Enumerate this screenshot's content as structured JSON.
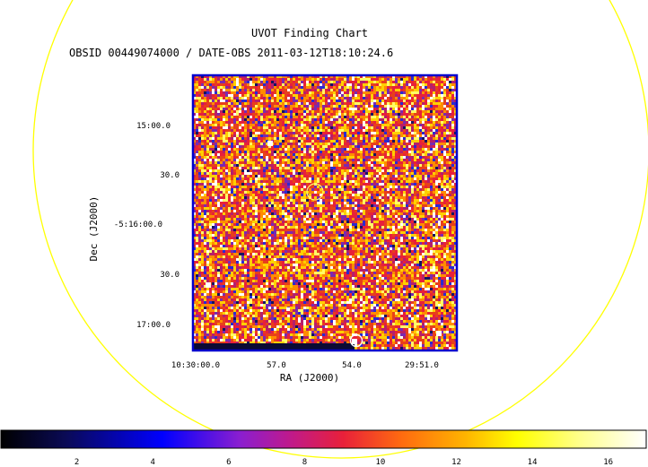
{
  "chart_data": {
    "type": "heatmap",
    "title": "UVOT Finding Chart",
    "subtitle": "OBSID 00449074000 / DATE-OBS 2011-03-12T18:10:24.6",
    "xlabel": "RA (J2000)",
    "ylabel": "Dec (J2000)",
    "ra_ticks": [
      "10:30:00.0",
      "57.0",
      "54.0",
      "29:51.0"
    ],
    "dec_ticks": [
      "15:00.0",
      "30.0",
      "-5:16:00.0",
      "30.0",
      "17:00.0"
    ],
    "colorbar": {
      "ticks": [
        2,
        4,
        6,
        8,
        10,
        12,
        14,
        16
      ],
      "range": [
        0,
        17
      ]
    },
    "colormap": [
      "#000000",
      "#0000ff",
      "#c01a8a",
      "#e8203a",
      "#ff6a10",
      "#ffff00",
      "#ffffff"
    ]
  }
}
